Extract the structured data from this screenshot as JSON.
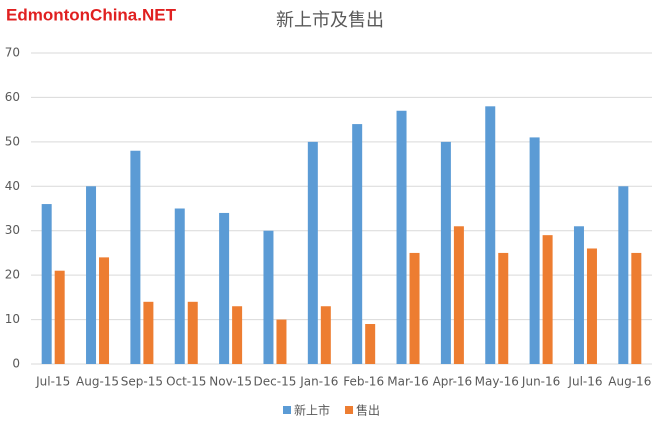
{
  "chart_data": {
    "type": "bar",
    "title": "新上市及售出",
    "watermark": "EdmontonChina.NET",
    "categories": [
      "Jul-15",
      "Aug-15",
      "Sep-15",
      "Oct-15",
      "Nov-15",
      "Dec-15",
      "Jan-16",
      "Feb-16",
      "Mar-16",
      "Apr-16",
      "May-16",
      "Jun-16",
      "Jul-16",
      "Aug-16"
    ],
    "series": [
      {
        "name": "新上市",
        "color": "#5b9bd5",
        "values": [
          36,
          40,
          48,
          35,
          34,
          30,
          50,
          54,
          57,
          50,
          58,
          51,
          31,
          40
        ]
      },
      {
        "name": "售出",
        "color": "#ed7d31",
        "values": [
          21,
          24,
          14,
          14,
          13,
          10,
          13,
          9,
          25,
          31,
          25,
          29,
          26,
          25
        ]
      }
    ],
    "ylim": [
      0,
      70
    ],
    "yticks": [
      0,
      10,
      20,
      30,
      40,
      50,
      60,
      70
    ],
    "grid": true,
    "legend": "bottom"
  }
}
